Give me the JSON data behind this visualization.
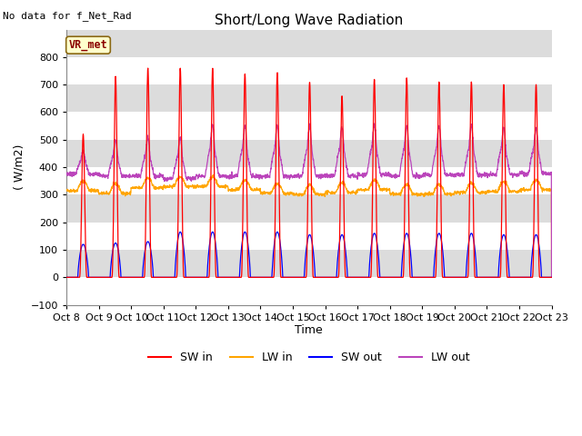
{
  "title": "Short/Long Wave Radiation",
  "ylabel": "( W/m2)",
  "xlabel": "Time",
  "ylim": [
    -100,
    900
  ],
  "yticks": [
    -100,
    0,
    100,
    200,
    300,
    400,
    500,
    600,
    700,
    800
  ],
  "no_data_text": "No data for f_Net_Rad",
  "vr_met_label": "VR_met",
  "x_tick_labels": [
    "Oct 8",
    "Oct 9",
    "Oct 10",
    "Oct 11",
    "Oct 12",
    "Oct 13",
    "Oct 14",
    "Oct 15",
    "Oct 16",
    "Oct 17",
    "Oct 18",
    "Oct 19",
    "Oct 20",
    "Oct 21",
    "Oct 22",
    "Oct 23"
  ],
  "colors": {
    "SW_in": "#FF0000",
    "LW_in": "#FFA500",
    "SW_out": "#0000FF",
    "LW_out": "#BB44BB"
  },
  "background_light": "#DCDCDC",
  "background_dark": "#C8C8C8",
  "grid_color": "#FFFFFF",
  "legend_labels": [
    "SW in",
    "LW in",
    "SW out",
    "LW out"
  ]
}
